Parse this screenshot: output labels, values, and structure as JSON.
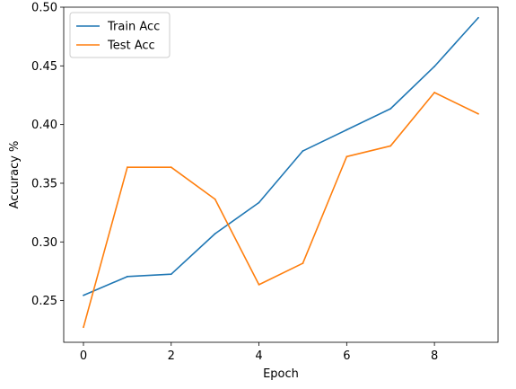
{
  "chart_data": {
    "type": "line",
    "title": "",
    "xlabel": "Epoch",
    "ylabel": "Accuracy %",
    "x": [
      0,
      1,
      2,
      3,
      4,
      5,
      6,
      7,
      8,
      9
    ],
    "xlim": [
      -0.45,
      9.45
    ],
    "ylim": [
      0.2145,
      0.5
    ],
    "x_ticks": [
      0,
      2,
      4,
      6,
      8
    ],
    "y_ticks": [
      0.25,
      0.3,
      0.35,
      0.4,
      0.45,
      0.5
    ],
    "x_tick_labels": [
      "0",
      "2",
      "4",
      "6",
      "8"
    ],
    "y_tick_labels": [
      "0.25",
      "0.30",
      "0.35",
      "0.40",
      "0.45",
      "0.50"
    ],
    "grid": false,
    "legend_position": "upper-left",
    "series": [
      {
        "name": "Train Acc",
        "color": "#1f77b4",
        "values": [
          0.2545,
          0.2705,
          0.2725,
          0.307,
          0.3335,
          0.3775,
          0.3955,
          0.4135,
          0.4495,
          0.491
        ]
      },
      {
        "name": "Test Acc",
        "color": "#ff7f0e",
        "values": [
          0.2273,
          0.3636,
          0.3636,
          0.3364,
          0.2636,
          0.2818,
          0.3727,
          0.3818,
          0.4273,
          0.4091
        ]
      }
    ]
  }
}
